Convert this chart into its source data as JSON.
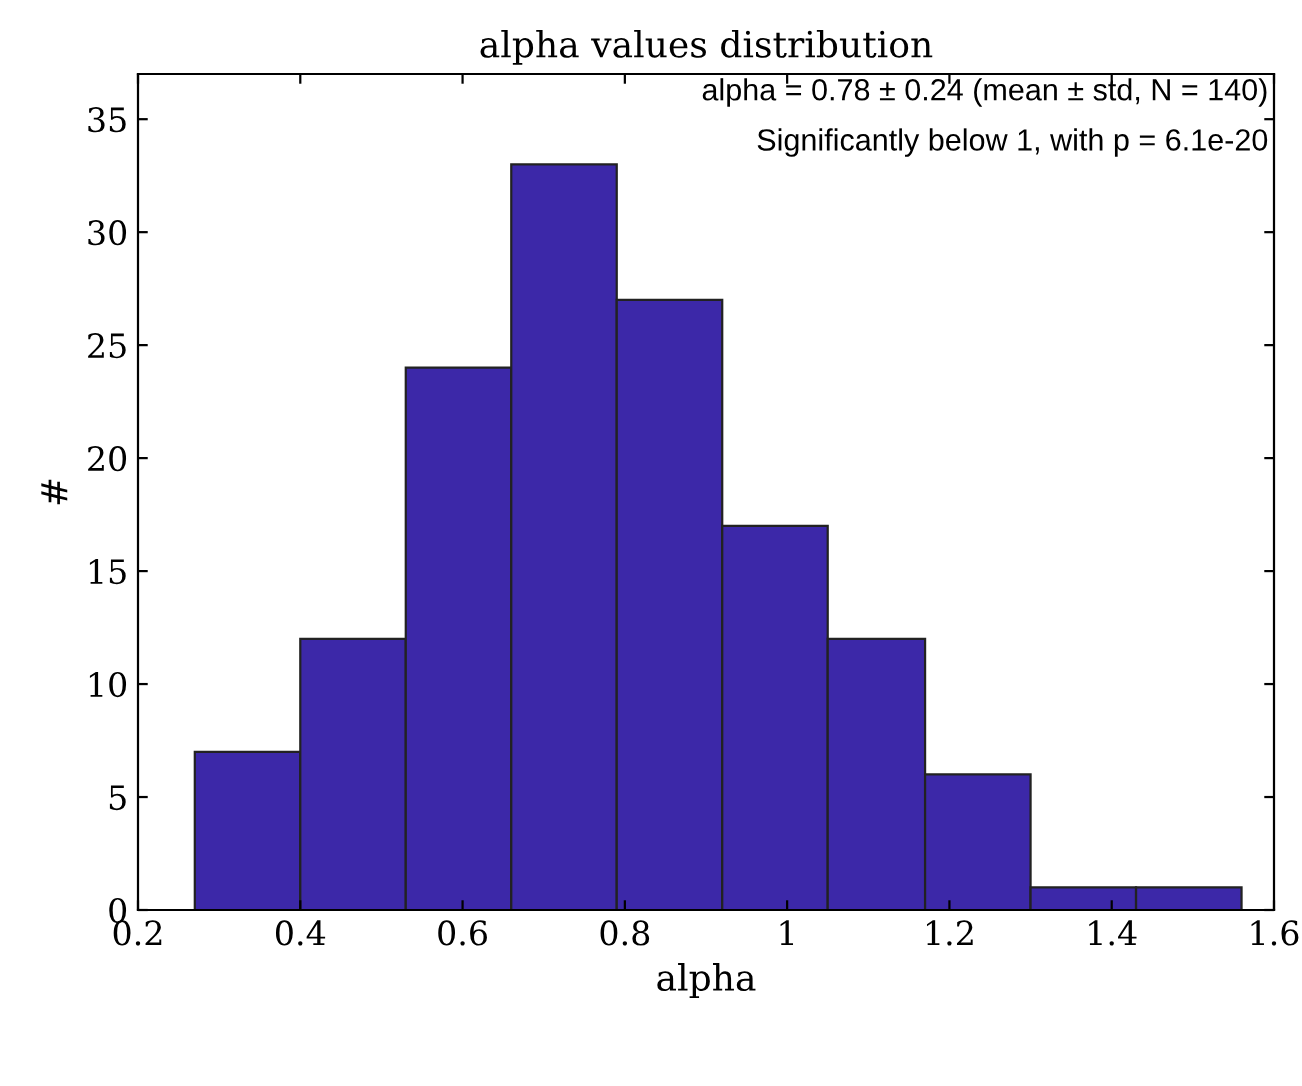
{
  "chart_data": {
    "type": "histogram",
    "title": "alpha values distribution",
    "xlabel": "alpha",
    "ylabel": "#",
    "bins": [
      0.27,
      0.4,
      0.53,
      0.66,
      0.79,
      0.92,
      1.05,
      1.17,
      1.3,
      1.43,
      1.56
    ],
    "values": [
      7,
      12,
      24,
      33,
      27,
      17,
      12,
      6,
      1,
      1
    ],
    "color": "#3c28a8",
    "xlim": [
      0.2,
      1.6
    ],
    "xticks": [
      0.2,
      0.4,
      0.6,
      0.8,
      1,
      1.2,
      1.4,
      1.6
    ],
    "ylim": [
      0,
      37
    ],
    "yticks": [
      0,
      5,
      10,
      15,
      20,
      25,
      30,
      35
    ],
    "grid": false,
    "annotations": [
      "alpha = 0.78 ± 0.24 (mean ± std, N = 140)",
      "Significantly below 1, with p = 6.1e-20"
    ]
  }
}
